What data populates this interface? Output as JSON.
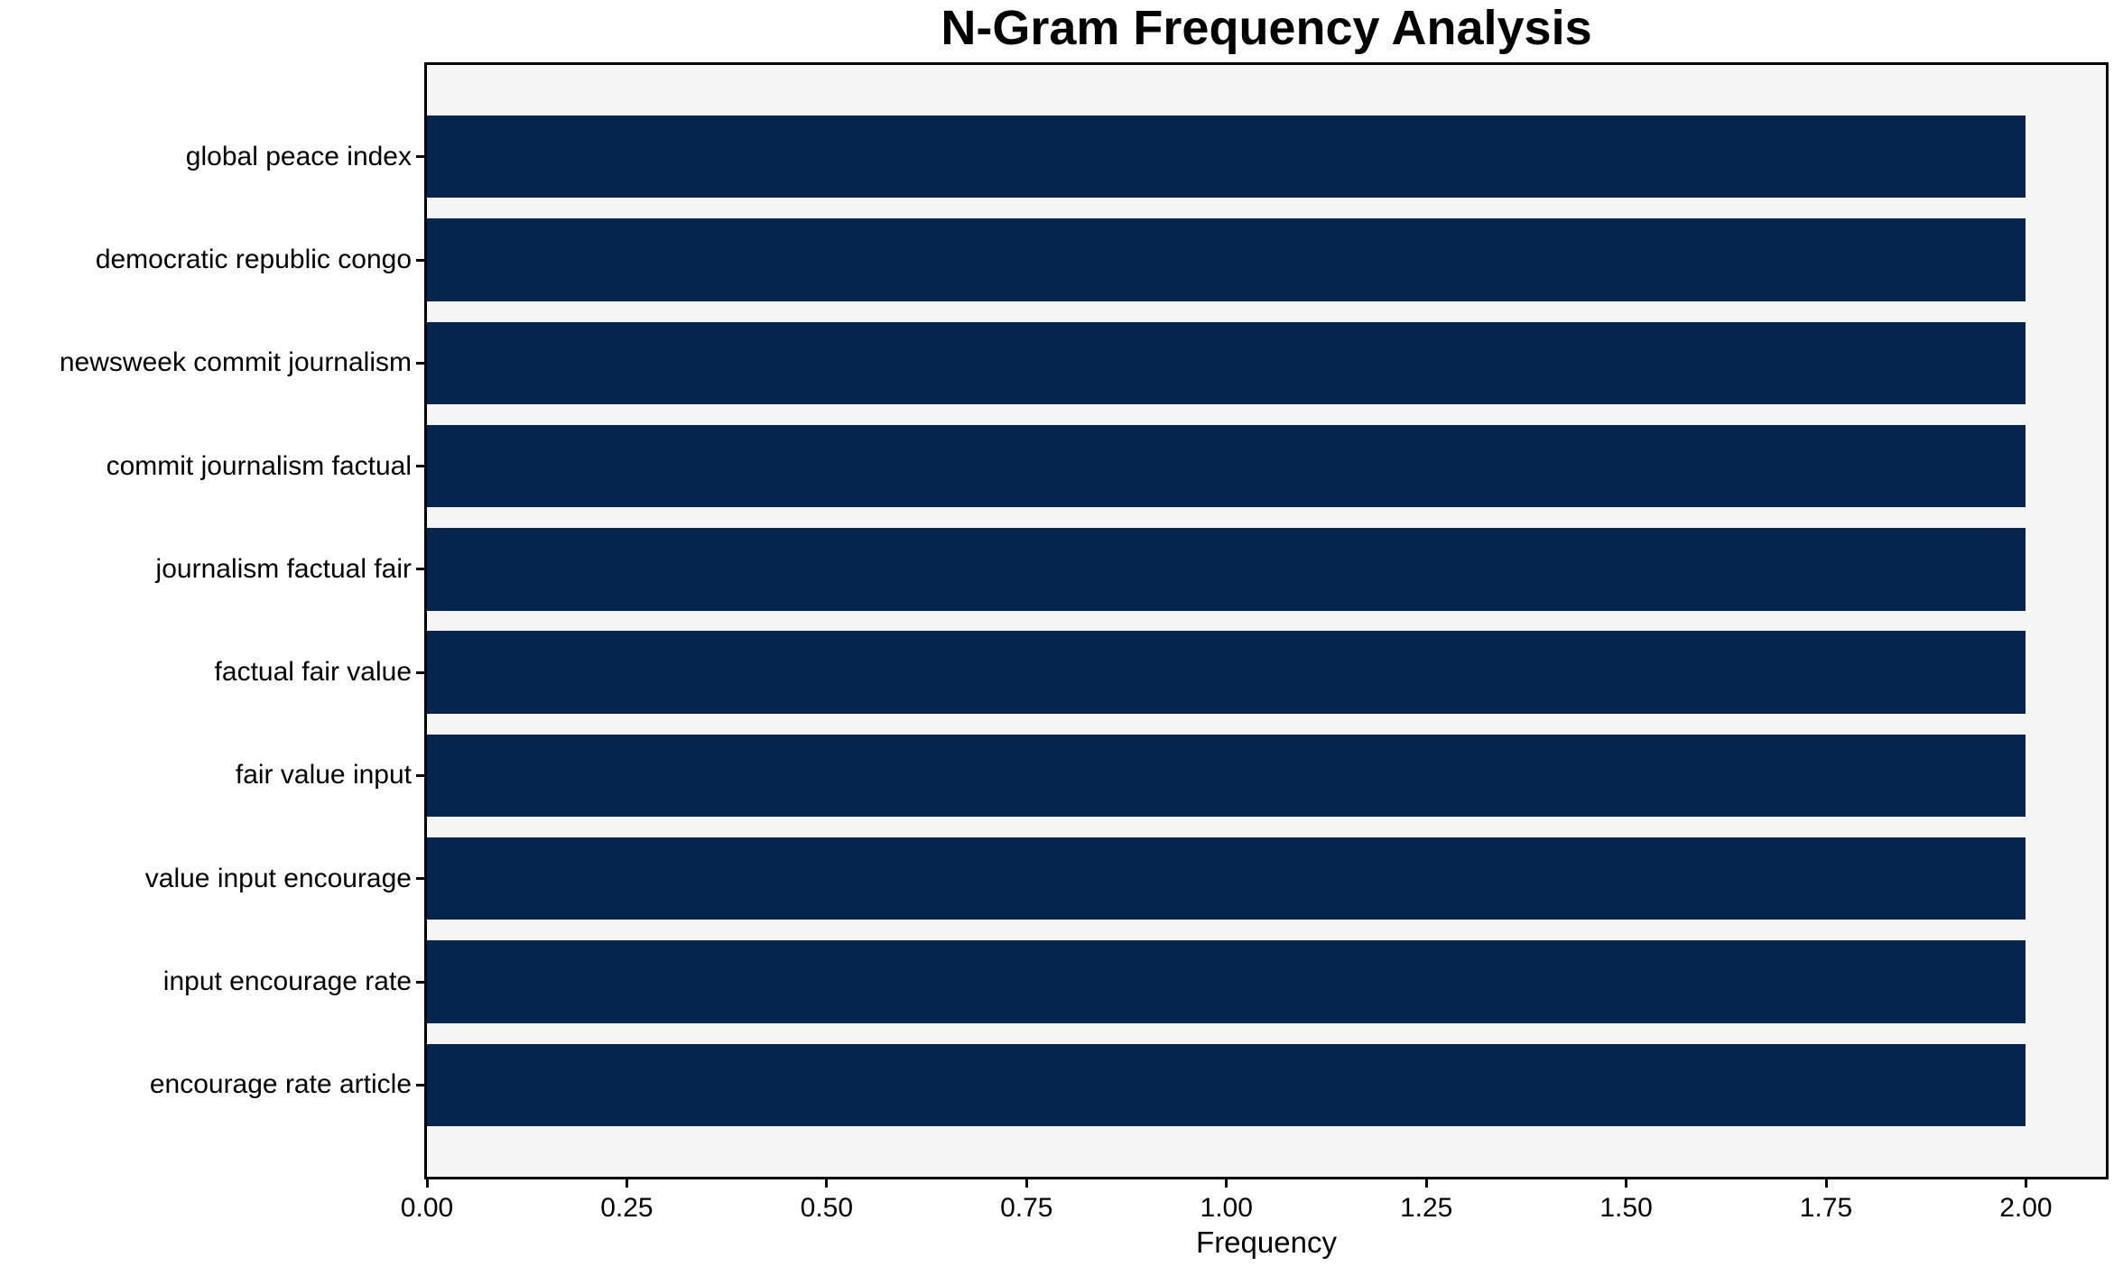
{
  "chart_data": {
    "type": "bar",
    "orientation": "horizontal",
    "title": "N-Gram Frequency Analysis",
    "xlabel": "Frequency",
    "ylabel": "",
    "categories": [
      "global peace index",
      "democratic republic congo",
      "newsweek commit journalism",
      "commit journalism factual",
      "journalism factual fair",
      "factual fair value",
      "fair value input",
      "value input encourage",
      "input encourage rate",
      "encourage rate article"
    ],
    "values": [
      2,
      2,
      2,
      2,
      2,
      2,
      2,
      2,
      2,
      2
    ],
    "xlim": [
      0,
      2.1
    ],
    "xticks": {
      "values": [
        0,
        0.25,
        0.5,
        0.75,
        1.0,
        1.25,
        1.5,
        1.75,
        2.0
      ],
      "labels": [
        "0.00",
        "0.25",
        "0.50",
        "0.75",
        "1.00",
        "1.25",
        "1.50",
        "1.75",
        "2.00"
      ]
    },
    "bar_height_fraction": 0.8,
    "grid": false,
    "legend": null,
    "colors": {
      "bar": "#06254e",
      "plot_background": "#f5f5f5",
      "figure_background": "#ffffff",
      "spine": "#000000",
      "text": "#000000"
    }
  }
}
